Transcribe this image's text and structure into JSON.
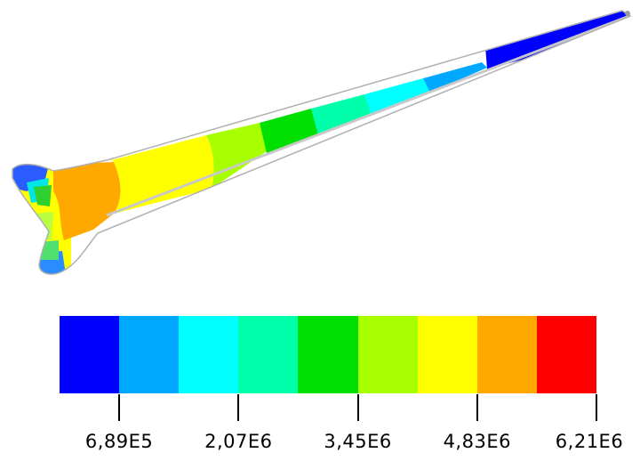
{
  "legend": {
    "colors": [
      "#0000ff",
      "#00a8ff",
      "#00ffff",
      "#00ffaa",
      "#00e000",
      "#a8ff00",
      "#ffff00",
      "#ffa800",
      "#ff0000"
    ],
    "ticks": [
      {
        "label": "6,89E5",
        "boundary": 1
      },
      {
        "label": "2,07E6",
        "boundary": 3
      },
      {
        "label": "3,45E6",
        "boundary": 5
      },
      {
        "label": "4,83E6",
        "boundary": 7
      },
      {
        "label": "6,21E6",
        "boundary": 9
      }
    ]
  }
}
